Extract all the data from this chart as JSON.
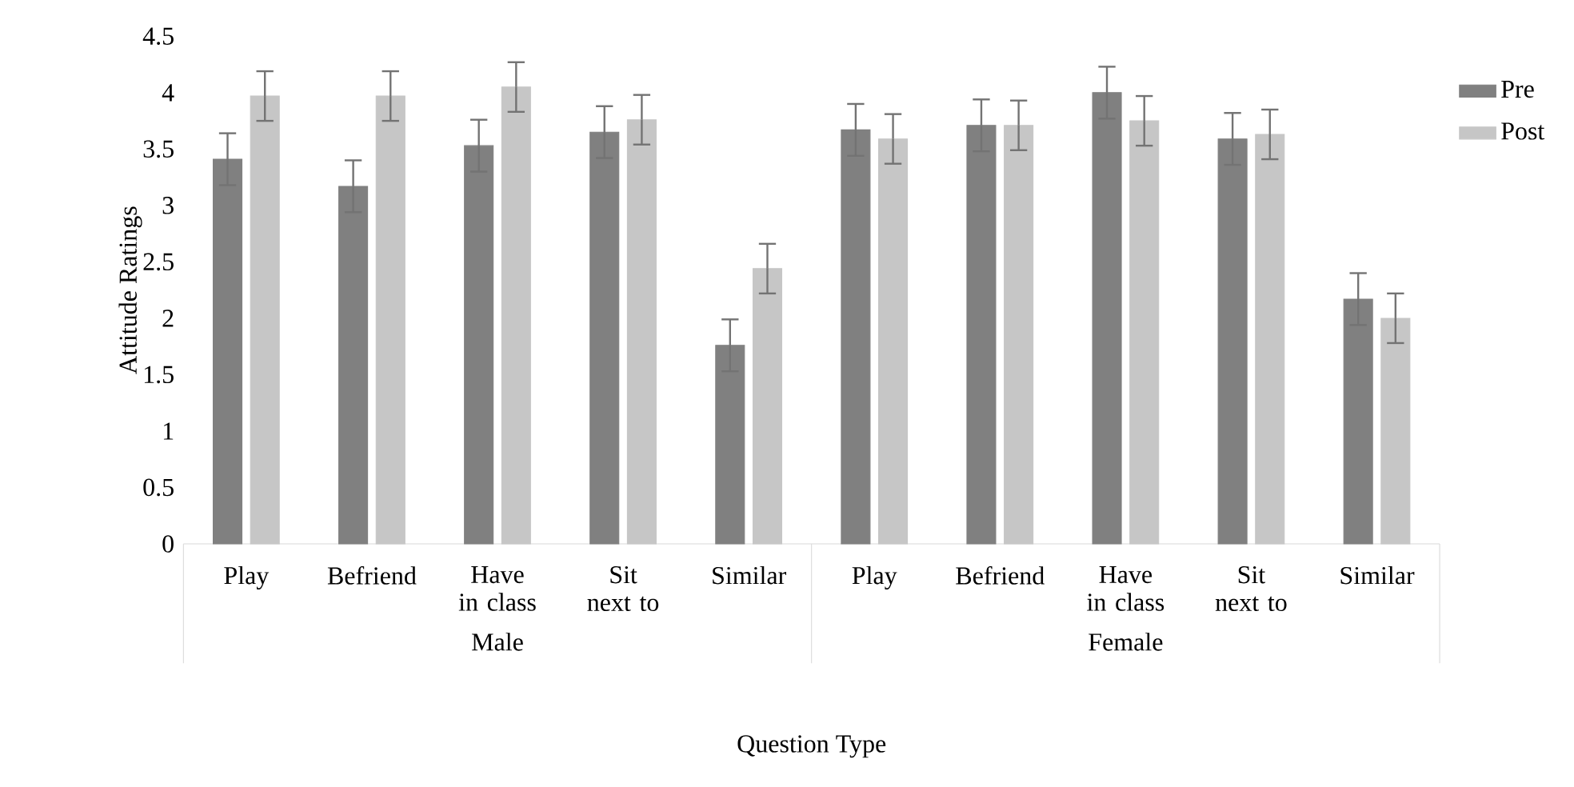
{
  "chart_data": {
    "type": "bar",
    "xlabel": "Question Type",
    "ylabel": "Attitude Ratings",
    "categories": [
      "Play",
      "Befriend",
      "Have in class",
      "Sit next to",
      "Similar",
      "Play",
      "Befriend",
      "Have in class",
      "Sit next to",
      "Similar"
    ],
    "series": [
      {
        "name": "Pre",
        "color": "#808080",
        "values": [
          3.41,
          3.17,
          3.53,
          3.65,
          1.76,
          3.67,
          3.71,
          4.0,
          3.59,
          2.17
        ],
        "errors": [
          0.23,
          0.23,
          0.23,
          0.23,
          0.23,
          0.23,
          0.23,
          0.23,
          0.23,
          0.23
        ]
      },
      {
        "name": "Post",
        "color": "#c6c6c6",
        "values": [
          3.97,
          3.97,
          4.05,
          3.76,
          2.44,
          3.59,
          3.71,
          3.75,
          3.63,
          2.0
        ],
        "errors": [
          0.22,
          0.22,
          0.22,
          0.22,
          0.22,
          0.22,
          0.22,
          0.22,
          0.22,
          0.22
        ]
      }
    ],
    "annotations": [
      "Male",
      "Female"
    ],
    "ylim": [
      0,
      4.5
    ],
    "yticks": [
      0,
      0.5,
      1,
      1.5,
      2,
      2.5,
      3,
      3.5,
      4,
      4.5
    ],
    "grid": false,
    "legend": "top right"
  }
}
